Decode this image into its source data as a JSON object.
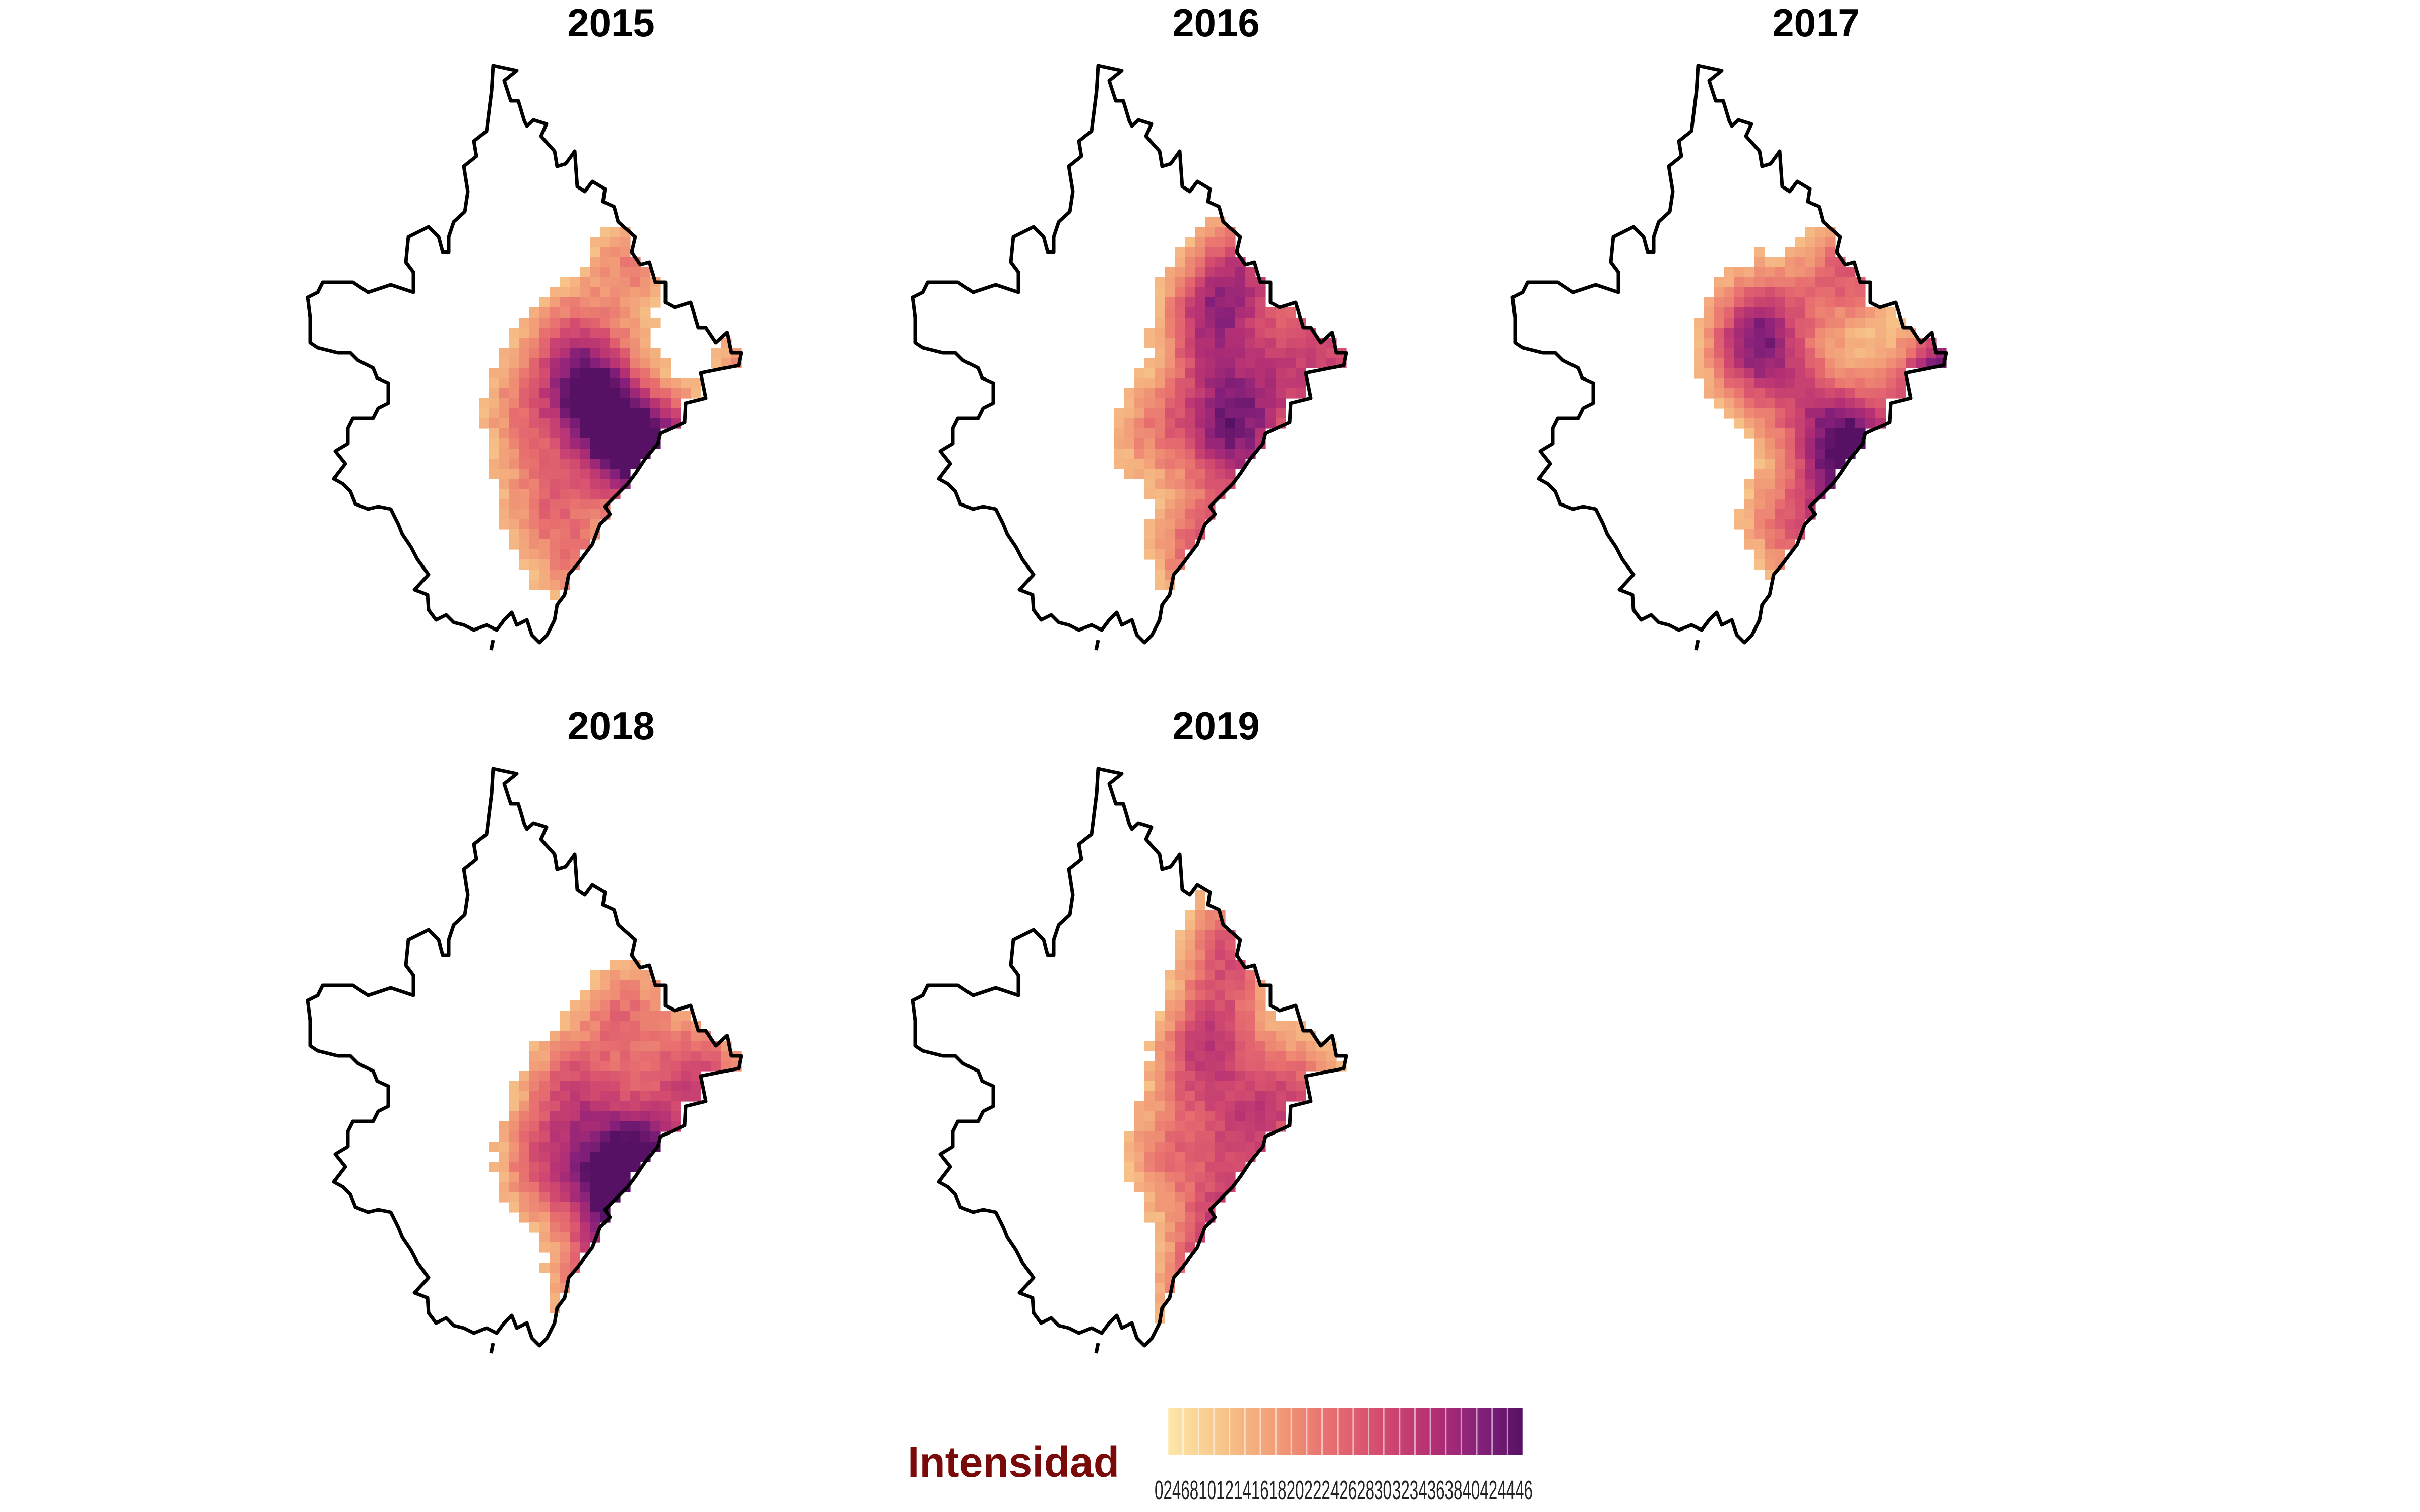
{
  "chart_data": {
    "type": "heatmap",
    "subtype": "small-multiple density maps with city boundary outline",
    "panels": [
      {
        "title": "2015",
        "hotspots": [
          [
            0.45,
            0.48,
            0.85
          ],
          [
            0.68,
            0.63,
            0.95
          ],
          [
            0.55,
            0.58,
            0.7
          ],
          [
            0.38,
            0.35,
            0.45
          ],
          [
            0.58,
            0.18,
            0.4
          ],
          [
            0.98,
            0.45,
            0.7
          ],
          [
            0.3,
            0.7,
            0.4
          ],
          [
            0.4,
            0.85,
            0.35
          ],
          [
            0.22,
            0.5,
            0.35
          ]
        ]
      },
      {
        "title": "2016",
        "hotspots": [
          [
            0.48,
            0.3,
            0.7
          ],
          [
            0.6,
            0.18,
            0.55
          ],
          [
            0.58,
            0.6,
            0.55
          ],
          [
            0.5,
            0.5,
            0.5
          ],
          [
            0.68,
            0.45,
            0.45
          ],
          [
            0.72,
            0.82,
            0.9
          ],
          [
            0.45,
            0.82,
            0.55
          ],
          [
            0.3,
            0.55,
            0.35
          ],
          [
            0.97,
            0.48,
            0.55
          ],
          [
            0.82,
            0.35,
            0.45
          ]
        ]
      },
      {
        "title": "2017",
        "hotspots": [
          [
            0.6,
            0.2,
            0.55
          ],
          [
            0.3,
            0.38,
            0.6
          ],
          [
            0.88,
            0.45,
            0.75
          ],
          [
            0.62,
            0.6,
            1.0
          ],
          [
            0.6,
            0.8,
            0.75
          ],
          [
            0.48,
            0.5,
            0.45
          ],
          [
            0.35,
            0.3,
            0.45
          ],
          [
            0.98,
            0.48,
            0.75
          ],
          [
            0.4,
            0.75,
            0.4
          ]
        ]
      },
      {
        "title": "2018",
        "hotspots": [
          [
            0.55,
            0.28,
            0.45
          ],
          [
            0.38,
            0.45,
            0.55
          ],
          [
            0.78,
            0.42,
            0.6
          ],
          [
            0.48,
            0.65,
            0.7
          ],
          [
            0.65,
            0.68,
            0.85
          ],
          [
            0.55,
            0.8,
            0.45
          ],
          [
            0.28,
            0.62,
            0.45
          ],
          [
            0.6,
            0.55,
            0.45
          ],
          [
            0.45,
            0.88,
            0.4
          ]
        ]
      },
      {
        "title": "2019",
        "hotspots": [
          [
            0.55,
            0.12,
            0.55
          ],
          [
            0.45,
            0.4,
            0.45
          ],
          [
            0.6,
            0.55,
            0.5
          ],
          [
            0.75,
            0.45,
            0.5
          ],
          [
            0.55,
            0.75,
            0.55
          ],
          [
            0.7,
            0.82,
            0.65
          ],
          [
            0.35,
            0.6,
            0.4
          ],
          [
            0.5,
            0.3,
            0.4
          ],
          [
            0.45,
            0.88,
            0.45
          ]
        ]
      }
    ],
    "legend": {
      "title": "Intensidad",
      "ticks": [
        "0",
        "2",
        "4",
        "6",
        "8",
        "10",
        "12",
        "14",
        "16",
        "18",
        "20",
        "22",
        "24",
        "26",
        "28",
        "30",
        "32",
        "34",
        "36",
        "38",
        "40",
        "42",
        "44",
        "46"
      ],
      "tick_label_text": "0246810121416182022242628303234363840424446"
    },
    "color_scale": [
      "#fde7a9",
      "#f7c68a",
      "#f29e78",
      "#e8706f",
      "#d34b6f",
      "#b22f74",
      "#85207a",
      "#561164"
    ]
  }
}
